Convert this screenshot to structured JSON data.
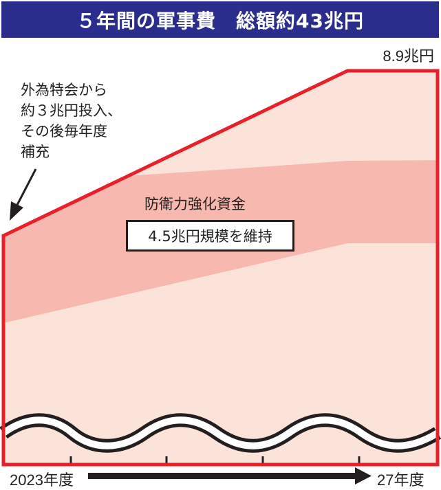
{
  "title": "５年間の軍事費　総額約43兆円",
  "peak_label": "8.9兆円",
  "annotation": {
    "lines": [
      "外為特会から",
      "約３兆円投入、",
      "その後毎年度",
      "補充"
    ]
  },
  "fund": {
    "label": "防衛力強化資金",
    "box_label": "4.5兆円規模を維持"
  },
  "axis": {
    "start_label": "2023年度",
    "end_label": "27年度"
  },
  "colors": {
    "title_bg": "#2b2d8c",
    "outline": "#e8202a",
    "area_fill": "#fbe3da",
    "fund_band": "#f7b8b0"
  },
  "icons": [
    "arrow-down-left-icon",
    "timeline-arrow-icon",
    "wave-break-icon"
  ]
}
